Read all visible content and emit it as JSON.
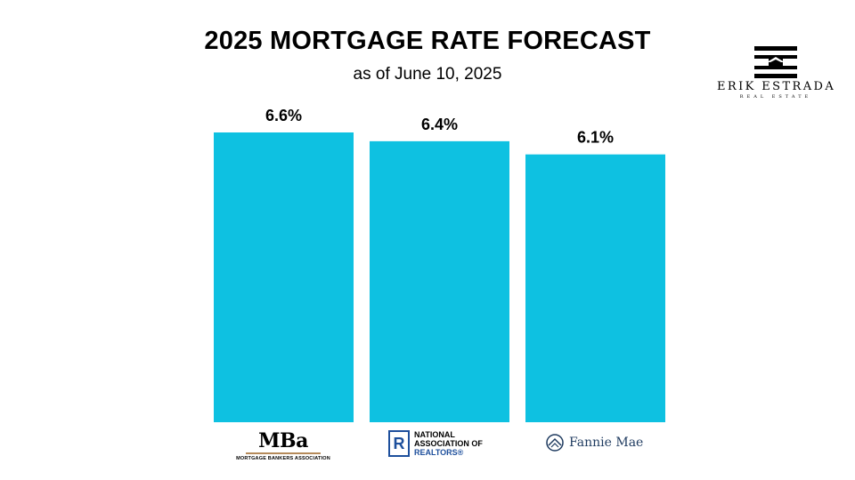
{
  "chart_data": {
    "type": "bar",
    "title": "2025 MORTGAGE RATE FORECAST",
    "subtitle": "as of June 10, 2025",
    "categories": [
      "MBA",
      "National Association of Realtors",
      "Fannie Mae"
    ],
    "values": [
      6.6,
      6.4,
      6.1
    ],
    "value_labels": [
      "6.6%",
      "6.4%",
      "6.1%"
    ],
    "ylim": [
      0,
      6.6
    ],
    "grid": false,
    "legend": "none",
    "bar_color": "#0ec1e1"
  },
  "brand": {
    "name": "ERIK ESTRADA",
    "sub": "REAL ESTATE"
  },
  "sources": {
    "mba": {
      "word": "MBa",
      "sub": "MORTGAGE BANKERS ASSOCIATION",
      "icon": "mba-logo"
    },
    "nar": {
      "icon_letter": "R",
      "line1": "NATIONAL",
      "line2": "ASSOCIATION OF",
      "line3": "REALTORS®",
      "icon": "realtor-r-icon"
    },
    "fannie": {
      "name": "Fannie Mae",
      "icon": "fannie-mae-house-icon"
    }
  }
}
